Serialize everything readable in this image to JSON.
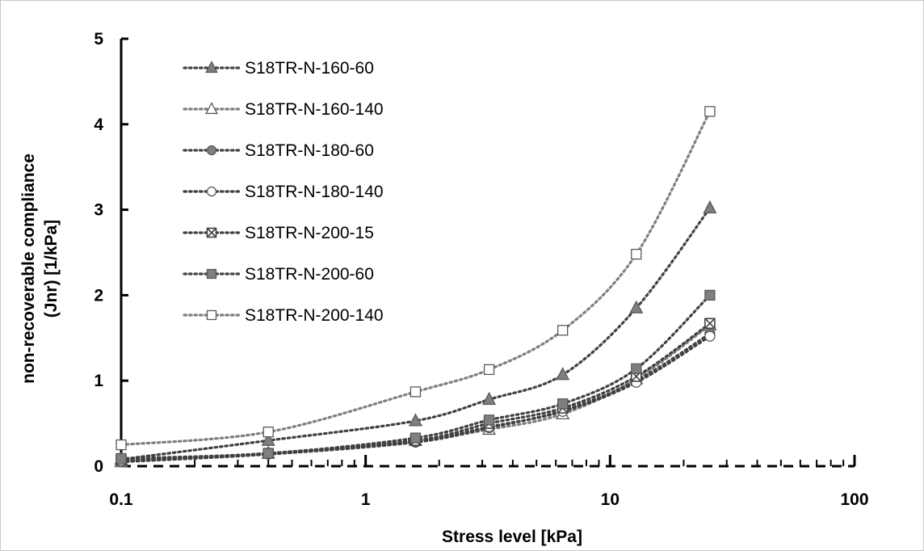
{
  "chart_data": {
    "type": "scatter",
    "title": "",
    "xlabel": "Stress level [kPa]",
    "ylabel_line1": "non-recoverable compliance",
    "ylabel_line2": "(Jnr) [1/kPa]",
    "x_scale": "log",
    "xlim": [
      0.1,
      100
    ],
    "ylim": [
      0,
      5
    ],
    "x_ticks": [
      0.1,
      1,
      10,
      100
    ],
    "x_tick_labels": [
      "0.1",
      "1",
      "10",
      "100"
    ],
    "y_ticks": [
      0,
      1,
      2,
      3,
      4,
      5
    ],
    "y_tick_labels": [
      "0",
      "1",
      "2",
      "3",
      "4",
      "5"
    ],
    "grid": false,
    "legend_position": "top-left",
    "x": [
      0.1,
      0.4,
      1.6,
      3.2,
      6.4,
      12.8,
      25.6
    ],
    "series": [
      {
        "name": "S18TR-N-160-60",
        "marker": "triangle",
        "fill": "#7f7f7f",
        "line_color": "#404040",
        "values": [
          0.08,
          0.3,
          0.53,
          0.78,
          1.07,
          1.85,
          3.02
        ]
      },
      {
        "name": "S18TR-N-160-140",
        "marker": "triangle",
        "fill": "#ffffff",
        "line_color": "#7f7f7f",
        "values": [
          0.05,
          0.15,
          0.3,
          0.43,
          0.61,
          1.02,
          1.65
        ]
      },
      {
        "name": "S18TR-N-180-60",
        "marker": "circle",
        "fill": "#7f7f7f",
        "line_color": "#404040",
        "values": [
          0.06,
          0.14,
          0.28,
          0.45,
          0.65,
          1.0,
          1.55
        ]
      },
      {
        "name": "S18TR-N-180-140",
        "marker": "circle",
        "fill": "#ffffff",
        "line_color": "#404040",
        "values": [
          0.05,
          0.14,
          0.29,
          0.46,
          0.64,
          0.98,
          1.52
        ]
      },
      {
        "name": "S18TR-N-200-15",
        "marker": "square-x",
        "fill": "#7f7f7f",
        "line_color": "#404040",
        "values": [
          0.07,
          0.15,
          0.3,
          0.5,
          0.68,
          1.05,
          1.67
        ]
      },
      {
        "name": "S18TR-N-200-60",
        "marker": "square",
        "fill": "#7f7f7f",
        "line_color": "#404040",
        "values": [
          0.09,
          0.15,
          0.33,
          0.54,
          0.73,
          1.14,
          2.0
        ]
      },
      {
        "name": "S18TR-N-200-140",
        "marker": "square",
        "fill": "#ffffff",
        "line_color": "#7f7f7f",
        "values": [
          0.25,
          0.4,
          0.87,
          1.13,
          1.59,
          2.48,
          4.15
        ]
      }
    ]
  }
}
